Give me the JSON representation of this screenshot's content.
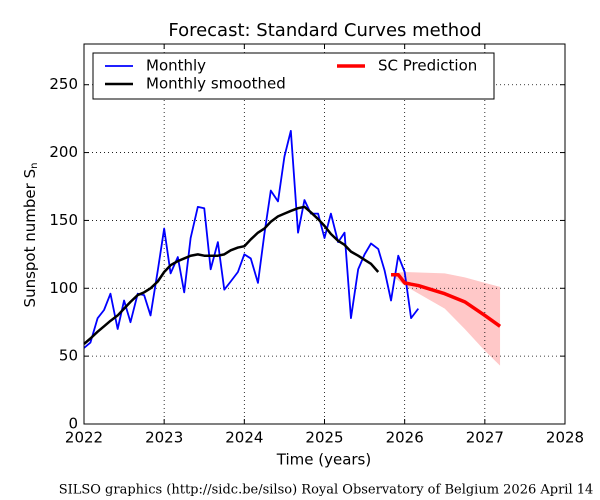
{
  "chart_data": {
    "type": "line",
    "title": "Forecast: Standard Curves method",
    "xlabel": "Time (years)",
    "ylabel": "Sunspot number S",
    "ylabel_sub": "n",
    "footer": "SILSO graphics (http://sidc.be/silso)  Royal Observatory of Belgium  2026 April 14",
    "xlim": [
      2022,
      2028
    ],
    "xticks": [
      2022,
      2023,
      2024,
      2025,
      2026,
      2027,
      2028
    ],
    "ylim": [
      0,
      280
    ],
    "yticks": [
      0,
      50,
      100,
      150,
      200,
      250
    ],
    "grid": true,
    "legend": "upper",
    "series": [
      {
        "name": "Monthly",
        "color": "#0000ff",
        "x": [
          2022.0,
          2022.08,
          2022.17,
          2022.25,
          2022.33,
          2022.42,
          2022.5,
          2022.58,
          2022.67,
          2022.75,
          2022.83,
          2022.92,
          2023.0,
          2023.08,
          2023.17,
          2023.25,
          2023.33,
          2023.42,
          2023.5,
          2023.58,
          2023.67,
          2023.75,
          2023.83,
          2023.92,
          2024.0,
          2024.08,
          2024.17,
          2024.25,
          2024.33,
          2024.42,
          2024.5,
          2024.58,
          2024.67,
          2024.75,
          2024.83,
          2024.92,
          2025.0,
          2025.08,
          2025.17,
          2025.25,
          2025.33,
          2025.42,
          2025.5,
          2025.58,
          2025.67,
          2025.75,
          2025.83,
          2025.92,
          2026.0,
          2026.08,
          2026.17
        ],
        "values": [
          56,
          60,
          78,
          84,
          96,
          70,
          91,
          75,
          96,
          95,
          80,
          113,
          144,
          111,
          123,
          97,
          137,
          160,
          159,
          114,
          134,
          99,
          105,
          112,
          125,
          122,
          104,
          140,
          172,
          164,
          197,
          216,
          141,
          165,
          155,
          155,
          137,
          155,
          134,
          141,
          78,
          114,
          125,
          133,
          129,
          113,
          91,
          124,
          112,
          78,
          85
        ]
      },
      {
        "name": "Monthly smoothed",
        "color": "#000000",
        "x": [
          2022.0,
          2022.08,
          2022.17,
          2022.25,
          2022.33,
          2022.42,
          2022.5,
          2022.58,
          2022.67,
          2022.75,
          2022.83,
          2022.92,
          2023.0,
          2023.08,
          2023.17,
          2023.25,
          2023.33,
          2023.42,
          2023.5,
          2023.58,
          2023.67,
          2023.75,
          2023.83,
          2023.92,
          2024.0,
          2024.08,
          2024.17,
          2024.25,
          2024.33,
          2024.42,
          2024.5,
          2024.58,
          2024.67,
          2024.75,
          2024.83,
          2024.92,
          2025.0,
          2025.08,
          2025.17,
          2025.25,
          2025.33,
          2025.42,
          2025.5,
          2025.58,
          2025.67
        ],
        "values": [
          59,
          63,
          68,
          72,
          76,
          80,
          85,
          90,
          95,
          97,
          100,
          105,
          112,
          117,
          120,
          122,
          124,
          125,
          124,
          124,
          124,
          125,
          128,
          130,
          131,
          136,
          141,
          144,
          149,
          153,
          155,
          157,
          159,
          160,
          156,
          151,
          146,
          140,
          135,
          132,
          127,
          124,
          121,
          118,
          112
        ]
      },
      {
        "name": "SC Prediction",
        "color": "#ff0000",
        "x": [
          2025.83,
          2025.92,
          2026.0,
          2026.08,
          2026.17,
          2026.5,
          2026.75,
          2027.0,
          2027.19
        ],
        "values": [
          110,
          110,
          104,
          103,
          102,
          96,
          90,
          80,
          72
        ]
      }
    ],
    "band": {
      "color": "#ffc8c8",
      "x": [
        2025.83,
        2026.0,
        2026.5,
        2026.75,
        2027.0,
        2027.19
      ],
      "upper": [
        111,
        112,
        111,
        108,
        104,
        101
      ],
      "lower": [
        110,
        102,
        85,
        70,
        54,
        43
      ]
    }
  }
}
